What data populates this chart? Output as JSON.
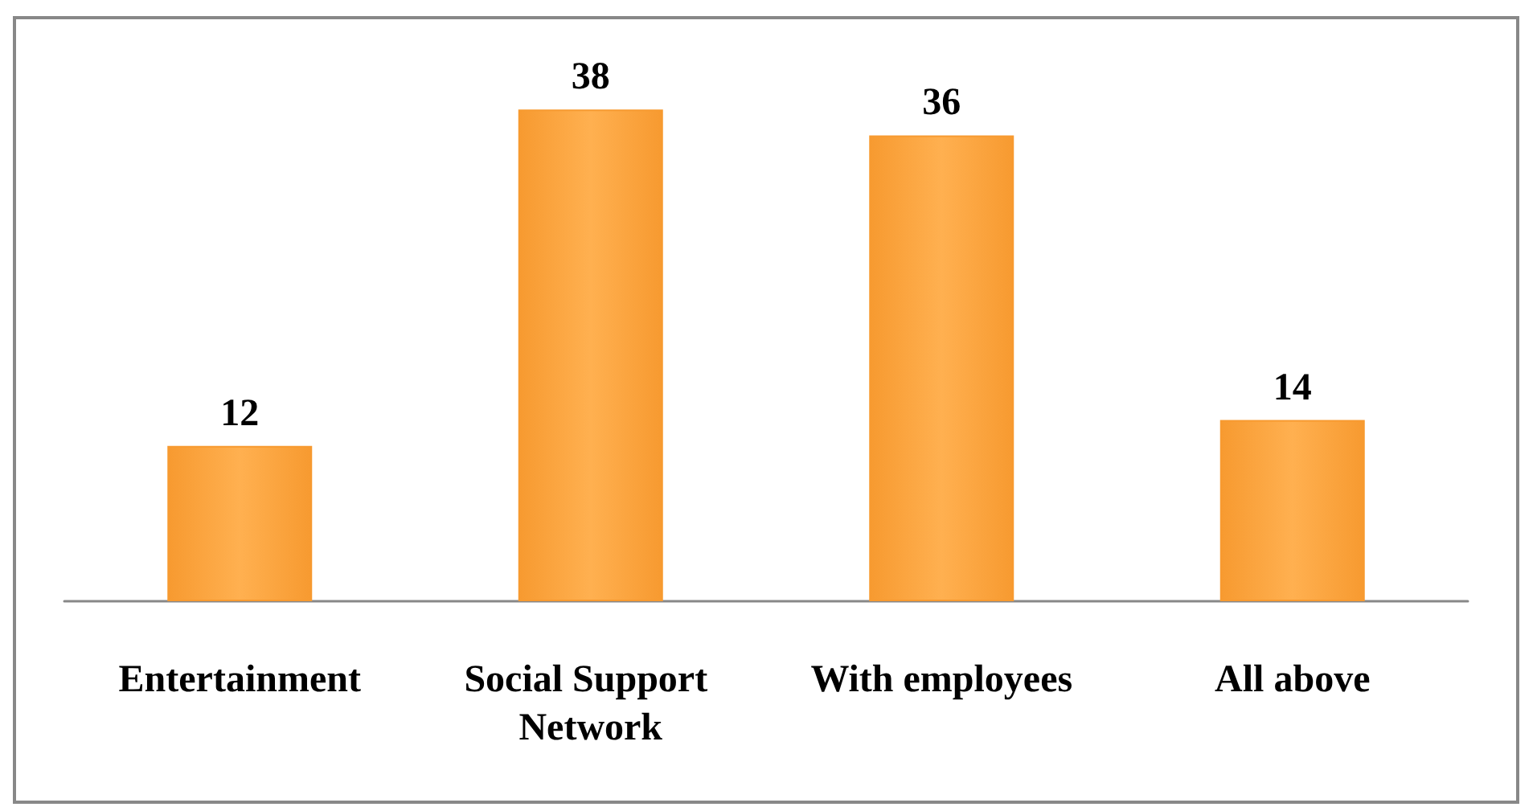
{
  "chart_data": {
    "type": "bar",
    "categories": [
      "Entertainment",
      "Social Support Network",
      "With employees",
      "All above"
    ],
    "values": [
      12,
      38,
      36,
      14
    ],
    "color": "#f79a30",
    "data_labels": true
  }
}
